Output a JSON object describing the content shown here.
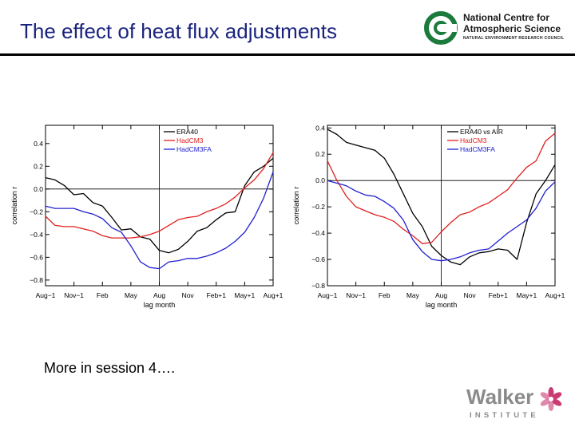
{
  "slide": {
    "title": "The effect of heat flux adjustments",
    "note": "More in session 4…."
  },
  "logos": {
    "ncas": {
      "line1": "National Centre for",
      "line2": "Atmospheric Science",
      "line3": "NATURAL ENVIRONMENT RESEARCH COUNCIL",
      "color": "#1b7a3c"
    },
    "walker": {
      "name": "Walker",
      "sub": "INSTITUTE",
      "color": "#c2185b"
    }
  },
  "chart_data": [
    {
      "type": "line",
      "xlabel": "lag month",
      "ylabel": "correlation r",
      "x_ticks": [
        "Aug−1",
        "Nov−1",
        "Feb",
        "May",
        "Aug",
        "Nov",
        "Feb+1",
        "May+1",
        "Aug+1"
      ],
      "ylim": [
        -0.85,
        0.56
      ],
      "y_ticks": [
        0.4,
        0.2,
        0.0,
        -0.2,
        -0.4,
        -0.6,
        -0.8
      ],
      "y_tick_labels": [
        "0.4",
        "0.2",
        "0.0",
        "−0.2",
        "−0.4",
        "−0.6",
        "−0.8"
      ],
      "xlim": [
        -12,
        12
      ],
      "x": [
        -12,
        -11,
        -10,
        -9,
        -8,
        -7,
        -6,
        -5,
        -4,
        -3,
        -2,
        -1,
        0,
        1,
        2,
        3,
        4,
        5,
        6,
        7,
        8,
        9,
        10,
        11,
        12
      ],
      "series": [
        {
          "name": "ERA40",
          "color": "#000000",
          "values": [
            0.1,
            0.08,
            0.03,
            -0.05,
            -0.04,
            -0.12,
            -0.15,
            -0.25,
            -0.36,
            -0.35,
            -0.42,
            -0.44,
            -0.54,
            -0.56,
            -0.53,
            -0.46,
            -0.37,
            -0.34,
            -0.27,
            -0.21,
            -0.2,
            0.03,
            0.15,
            0.2,
            0.27
          ]
        },
        {
          "name": "HadCM3",
          "color": "#e02020",
          "values": [
            -0.24,
            -0.32,
            -0.33,
            -0.33,
            -0.35,
            -0.37,
            -0.41,
            -0.43,
            -0.43,
            -0.43,
            -0.42,
            -0.4,
            -0.37,
            -0.32,
            -0.27,
            -0.25,
            -0.24,
            -0.2,
            -0.17,
            -0.13,
            -0.07,
            0.01,
            0.08,
            0.18,
            0.32
          ]
        },
        {
          "name": "HadCM3FA",
          "color": "#2020d0",
          "values": [
            -0.15,
            -0.17,
            -0.17,
            -0.17,
            -0.2,
            -0.22,
            -0.26,
            -0.34,
            -0.38,
            -0.5,
            -0.64,
            -0.69,
            -0.7,
            -0.64,
            -0.63,
            -0.61,
            -0.61,
            -0.59,
            -0.56,
            -0.52,
            -0.46,
            -0.38,
            -0.25,
            -0.08,
            0.15
          ]
        }
      ]
    },
    {
      "type": "line",
      "xlabel": "lag month",
      "ylabel": "correlation r",
      "x_ticks": [
        "Aug−1",
        "Nov−1",
        "Feb",
        "May",
        "Aug",
        "Nov",
        "Feb+1",
        "May+1",
        "Aug+1"
      ],
      "ylim": [
        -0.8,
        0.42
      ],
      "y_ticks": [
        0.4,
        0.2,
        0.0,
        -0.2,
        -0.4,
        -0.6,
        -0.8
      ],
      "y_tick_labels": [
        "0.4",
        "0.2",
        "0.0",
        "−0.2",
        "−0.4",
        "−0.6",
        "−0.8"
      ],
      "xlim": [
        -12,
        12
      ],
      "x": [
        -12,
        -11,
        -10,
        -9,
        -8,
        -7,
        -6,
        -5,
        -4,
        -3,
        -2,
        -1,
        0,
        1,
        2,
        3,
        4,
        5,
        6,
        7,
        8,
        9,
        10,
        11,
        12
      ],
      "series": [
        {
          "name": "ERA40 vs AIR",
          "color": "#000000",
          "values": [
            0.39,
            0.35,
            0.29,
            0.27,
            0.25,
            0.23,
            0.17,
            0.05,
            -0.1,
            -0.25,
            -0.35,
            -0.5,
            -0.57,
            -0.62,
            -0.64,
            -0.58,
            -0.55,
            -0.54,
            -0.52,
            -0.53,
            -0.6,
            -0.32,
            -0.1,
            0.0,
            0.12
          ]
        },
        {
          "name": "HadCM3",
          "color": "#e02020",
          "values": [
            0.15,
            0.0,
            -0.12,
            -0.2,
            -0.23,
            -0.26,
            -0.28,
            -0.31,
            -0.37,
            -0.42,
            -0.48,
            -0.47,
            -0.39,
            -0.32,
            -0.26,
            -0.24,
            -0.2,
            -0.17,
            -0.12,
            -0.07,
            0.02,
            0.1,
            0.15,
            0.3,
            0.36
          ]
        },
        {
          "name": "HadCM3FA",
          "color": "#2020d0",
          "values": [
            0.0,
            -0.02,
            -0.04,
            -0.08,
            -0.11,
            -0.12,
            -0.16,
            -0.21,
            -0.3,
            -0.45,
            -0.54,
            -0.6,
            -0.61,
            -0.6,
            -0.58,
            -0.55,
            -0.53,
            -0.52,
            -0.46,
            -0.4,
            -0.35,
            -0.3,
            -0.21,
            -0.08,
            -0.01
          ]
        }
      ]
    }
  ]
}
